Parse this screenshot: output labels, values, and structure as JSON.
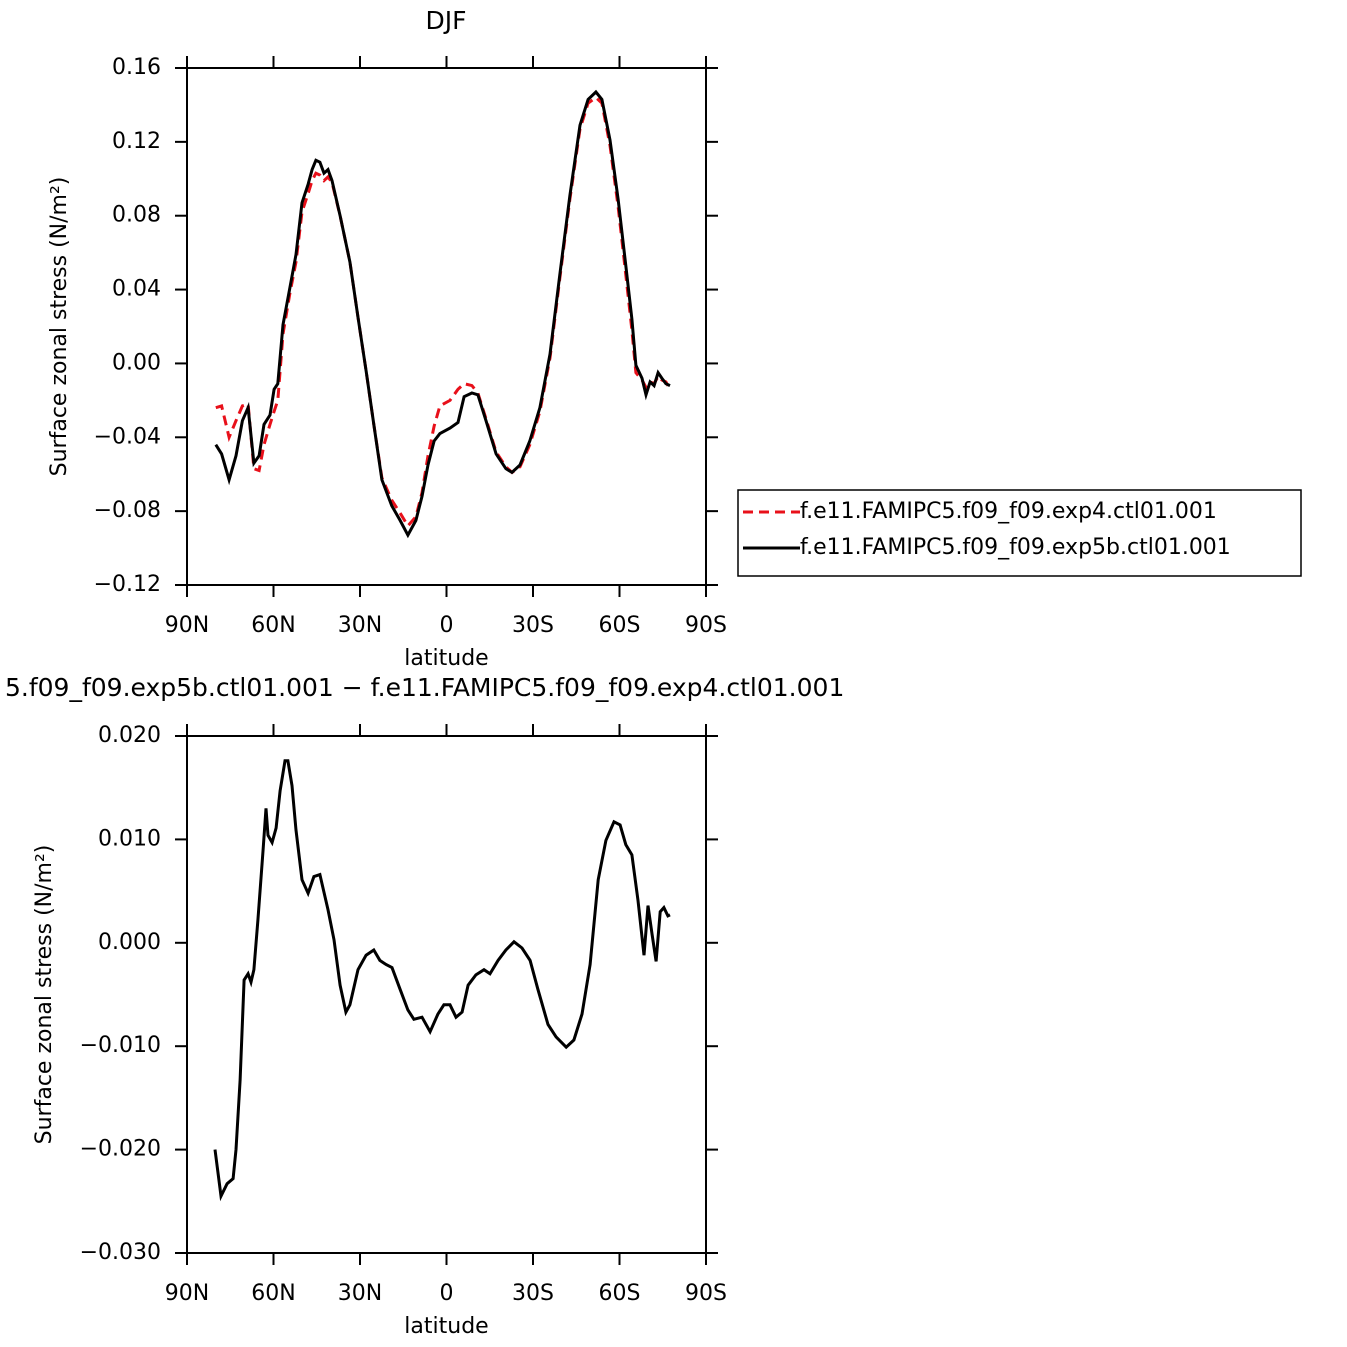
{
  "chart_data": [
    {
      "type": "line",
      "title": "DJF",
      "xlabel": "latitude",
      "ylabel": "Surface zonal stress (N/m²)",
      "xlim": [
        90,
        -90
      ],
      "xticks": [
        {
          "value": 90,
          "label": "90N"
        },
        {
          "value": 60,
          "label": "60N"
        },
        {
          "value": 30,
          "label": "30N"
        },
        0,
        {
          "value": -30,
          "label": "30S"
        },
        {
          "value": -60,
          "label": "60S"
        },
        {
          "value": -90,
          "label": "90S"
        }
      ],
      "ylim": [
        -0.12,
        0.16
      ],
      "yticks": [
        {
          "value": -0.12,
          "label": "−0.12"
        },
        {
          "value": -0.08,
          "label": "−0.08"
        },
        {
          "value": -0.04,
          "label": "−0.04"
        },
        {
          "value": 0,
          "label": "0.00"
        },
        0.04,
        0.08,
        0.12,
        0.16
      ],
      "legend": "outside-right",
      "x": [
        80,
        78,
        75.4,
        73,
        70.8,
        68.8,
        66.8,
        65,
        63.3,
        61.2,
        59.8,
        58.5,
        56.7,
        54.3,
        52.2,
        50.1,
        48,
        46.6,
        45.3,
        43.9,
        42.5,
        41.1,
        39.7,
        36.9,
        33.5,
        30.7,
        27.9,
        25.2,
        22.4,
        19,
        16.1,
        13.4,
        10.6,
        8.5,
        6.4,
        4.3,
        2.3,
        -1.2,
        -4,
        -6.1,
        -8.8,
        -10.9,
        -13.7,
        -17.2,
        -20.6,
        -22.7,
        -25.5,
        -28.9,
        -32.4,
        -35.9,
        -39.3,
        -42.8,
        -46.3,
        -49.1,
        -51.8,
        -53.9,
        -56.7,
        -59.5,
        -62.2,
        -64.3,
        -65.7,
        -67.8,
        -69.2,
        -70.6,
        -72,
        -73.4,
        -74.7,
        -76.1,
        -77.5
      ],
      "series": [
        {
          "name": "f.e11.FAMIPC5.f09_f09.exp4.ctl01.001",
          "color": "#e8101a",
          "dash": "dashed",
          "values": [
            -0.024,
            -0.023,
            -0.04,
            -0.031,
            -0.023,
            -0.022,
            -0.057,
            -0.058,
            -0.044,
            -0.033,
            -0.026,
            -0.02,
            0.016,
            0.038,
            0.055,
            0.082,
            0.092,
            0.099,
            0.103,
            0.102,
            0.099,
            0.101,
            0.098,
            0.08,
            0.055,
            0.025,
            -0.004,
            -0.033,
            -0.062,
            -0.074,
            -0.081,
            -0.088,
            -0.083,
            -0.07,
            -0.05,
            -0.034,
            -0.023,
            -0.02,
            -0.014,
            -0.011,
            -0.012,
            -0.016,
            -0.03,
            -0.048,
            -0.056,
            -0.059,
            -0.056,
            -0.044,
            -0.026,
            0.003,
            0.046,
            0.089,
            0.127,
            0.141,
            0.144,
            0.141,
            0.118,
            0.085,
            0.048,
            0.018,
            -0.005,
            -0.009,
            -0.013,
            -0.01,
            -0.011,
            -0.007,
            -0.009,
            -0.01,
            -0.014
          ]
        },
        {
          "name": "f.e11.FAMIPC5.f09_f09.exp5b.ctl01.001",
          "color": "#000000",
          "dash": "solid",
          "values": [
            -0.044,
            -0.049,
            -0.063,
            -0.05,
            -0.031,
            -0.024,
            -0.054,
            -0.05,
            -0.033,
            -0.028,
            -0.014,
            -0.011,
            0.021,
            0.041,
            0.059,
            0.087,
            0.097,
            0.105,
            0.11,
            0.109,
            0.103,
            0.105,
            0.099,
            0.08,
            0.055,
            0.025,
            -0.004,
            -0.033,
            -0.063,
            -0.077,
            -0.085,
            -0.093,
            -0.085,
            -0.072,
            -0.055,
            -0.042,
            -0.038,
            -0.035,
            -0.032,
            -0.018,
            -0.016,
            -0.017,
            -0.031,
            -0.049,
            -0.057,
            -0.059,
            -0.055,
            -0.042,
            -0.024,
            0.005,
            0.048,
            0.091,
            0.129,
            0.143,
            0.147,
            0.143,
            0.121,
            0.089,
            0.053,
            0.024,
            -0.001,
            -0.008,
            -0.017,
            -0.01,
            -0.012,
            -0.005,
            -0.008,
            -0.011,
            -0.012
          ]
        }
      ]
    },
    {
      "type": "line",
      "title": "5.f09_f09.exp5b.ctl01.001 − f.e11.FAMIPC5.f09_f09.exp4.ctl01.001",
      "xlabel": "latitude",
      "ylabel": "Surface zonal stress (N/m²)",
      "xlim": [
        90,
        -90
      ],
      "xticks": [
        {
          "value": 90,
          "label": "90N"
        },
        {
          "value": 60,
          "label": "60N"
        },
        {
          "value": 30,
          "label": "30N"
        },
        0,
        {
          "value": -30,
          "label": "30S"
        },
        {
          "value": -60,
          "label": "60S"
        },
        {
          "value": -90,
          "label": "90S"
        }
      ],
      "ylim": [
        -0.03,
        0.02
      ],
      "yticks": [
        {
          "value": -0.03,
          "label": "−0.030"
        },
        {
          "value": -0.02,
          "label": "−0.020"
        },
        {
          "value": -0.01,
          "label": "−0.010"
        },
        {
          "value": 0,
          "label": "0.000"
        },
        {
          "value": 0.01,
          "label": "0.010"
        },
        {
          "value": 0.02,
          "label": "0.020"
        }
      ],
      "x": [
        80.3,
        78.2,
        76.1,
        74,
        73,
        71.6,
        70.2,
        68.8,
        67.8,
        66.8,
        65.4,
        63.6,
        62.6,
        61.9,
        60.5,
        59.1,
        57.7,
        56,
        55,
        53.6,
        52.2,
        50.1,
        48,
        46,
        43.9,
        41.1,
        39,
        36.9,
        34.9,
        33.5,
        30.7,
        27.9,
        25.2,
        23.1,
        21,
        18.9,
        16.1,
        13.4,
        11.3,
        8.5,
        5.7,
        3,
        0.9,
        -1.2,
        -3.3,
        -5.4,
        -7.5,
        -10.2,
        -13,
        -15.1,
        -17.9,
        -20.6,
        -23.4,
        -26.2,
        -29,
        -31.7,
        -35.2,
        -38,
        -41.5,
        -44.2,
        -47,
        -49.8,
        -52.6,
        -55.3,
        -58.1,
        -60.2,
        -62.2,
        -64.3,
        -66.4,
        -68.5,
        -69.9,
        -71.3,
        -72.7,
        -74.1,
        -75.4,
        -76.8,
        -77.5
      ],
      "series": [
        {
          "color": "#000000",
          "dash": "solid",
          "values": [
            -0.02,
            -0.0245,
            -0.0233,
            -0.0228,
            -0.02,
            -0.0133,
            -0.0036,
            -0.003,
            -0.0038,
            -0.0026,
            0.0022,
            0.009,
            0.013,
            0.0104,
            0.0097,
            0.0111,
            0.0147,
            0.0176,
            0.0176,
            0.0152,
            0.0109,
            0.0061,
            0.0048,
            0.0064,
            0.0066,
            0.0032,
            0.0003,
            -0.0041,
            -0.0067,
            -0.006,
            -0.0026,
            -0.0012,
            -0.0007,
            -0.0017,
            -0.0021,
            -0.0024,
            -0.0045,
            -0.0065,
            -0.0074,
            -0.0072,
            -0.0086,
            -0.0069,
            -0.006,
            -0.006,
            -0.0072,
            -0.0067,
            -0.0041,
            -0.0031,
            -0.0026,
            -0.003,
            -0.0017,
            -0.0007,
            0.0001,
            -0.0005,
            -0.0017,
            -0.0045,
            -0.0079,
            -0.0091,
            -0.0101,
            -0.0094,
            -0.0069,
            -0.0021,
            0.0061,
            0.0099,
            0.0117,
            0.0114,
            0.0095,
            0.0085,
            0.0041,
            -0.0012,
            0.0036,
            0.0008,
            -0.0018,
            0.003,
            0.0034,
            0.0026,
            0.0027
          ]
        }
      ]
    }
  ]
}
